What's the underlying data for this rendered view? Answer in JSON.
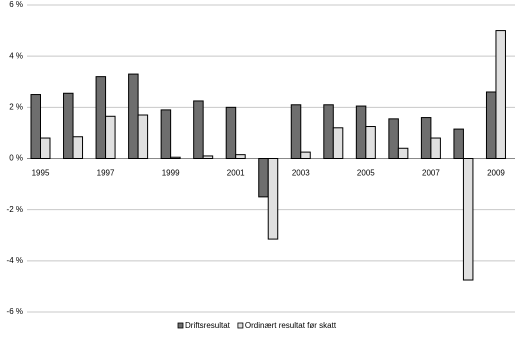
{
  "chart_data": {
    "type": "bar",
    "categories": [
      "1995",
      null,
      "1997",
      null,
      "1999",
      null,
      "2001",
      null,
      "2003",
      null,
      "2005",
      null,
      "2007",
      null,
      "2009"
    ],
    "series": [
      {
        "name": "Driftsresultat",
        "color": "#6e6e6e",
        "values": [
          2.5,
          2.55,
          3.2,
          3.3,
          1.9,
          2.25,
          2.0,
          -1.5,
          2.1,
          2.1,
          2.05,
          1.55,
          1.6,
          1.15,
          2.6
        ]
      },
      {
        "name": "Ordinært resultat før skatt",
        "color": "#e0e0e0",
        "values": [
          0.8,
          0.85,
          1.65,
          1.7,
          0.05,
          0.1,
          0.15,
          -3.15,
          0.25,
          1.2,
          1.25,
          0.4,
          0.8,
          -4.75,
          5.0
        ]
      }
    ],
    "ylim": [
      -6,
      6
    ],
    "yticks": [
      {
        "value": -6,
        "label": "-6 %"
      },
      {
        "value": -4,
        "label": "-4 %"
      },
      {
        "value": -2,
        "label": "-2 %"
      },
      {
        "value": 0,
        "label": "0 %"
      },
      {
        "value": 2,
        "label": "2 %"
      },
      {
        "value": 4,
        "label": "4 %"
      },
      {
        "value": 6,
        "label": "6 %"
      }
    ],
    "grid": true,
    "legend": "bottom"
  }
}
